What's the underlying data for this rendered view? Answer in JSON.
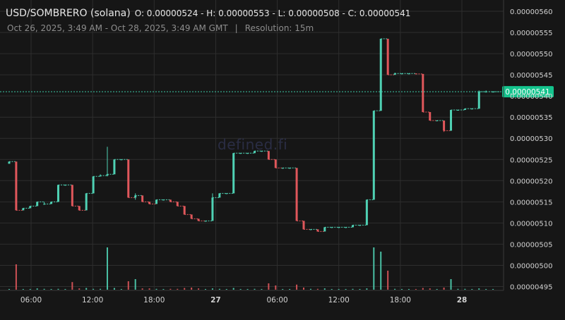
{
  "header": {
    "symbol": "USD/SOMBRERO (solana)",
    "ohlc": "O: 0.00000524 - H: 0.00000553 - L: 0.00000508 - C: 0.00000541",
    "date_range": "Oct 26, 2025, 3:49 AM - Oct 28, 2025, 3:49 AM GMT",
    "separator": "|",
    "resolution": "Resolution: 15m"
  },
  "watermark": "defined.fi",
  "colors": {
    "background": "#161616",
    "up": "#4fd1b4",
    "down": "#e0575b",
    "grid": "#2e2e2e",
    "price_line": "#3ec9a7",
    "price_tag_bg": "#14c48d"
  },
  "chart_data": {
    "type": "candlestick",
    "y_axis": {
      "ticks": [
        "0.00000560",
        "0.00000555",
        "0.00000550",
        "0.00000545",
        "0.00000540",
        "0.00000535",
        "0.00000530",
        "0.00000525",
        "0.00000520",
        "0.00000515",
        "0.00000510",
        "0.00000505",
        "0.00000500",
        "0.00000495"
      ],
      "range": [
        4.945e-06,
        5.6e-06
      ]
    },
    "x_axis": {
      "ticks": [
        {
          "label": "06:00",
          "bold": false
        },
        {
          "label": "12:00",
          "bold": false
        },
        {
          "label": "18:00",
          "bold": false
        },
        {
          "label": "27",
          "bold": true
        },
        {
          "label": "06:00",
          "bold": false
        },
        {
          "label": "12:00",
          "bold": false
        },
        {
          "label": "18:00",
          "bold": false
        },
        {
          "label": "28",
          "bold": true
        }
      ]
    },
    "current_price": "0.00000541",
    "current_price_value": 5.41e-06,
    "candles": [
      {
        "o": 5.24,
        "h": 5.245,
        "l": 5.24,
        "c": 5.245,
        "v": 0
      },
      {
        "o": 5.245,
        "h": 5.245,
        "l": 5.13,
        "c": 5.13,
        "v": 6
      },
      {
        "o": 5.13,
        "h": 5.135,
        "l": 5.13,
        "c": 5.135,
        "v": 0
      },
      {
        "o": 5.135,
        "h": 5.14,
        "l": 5.135,
        "c": 5.14,
        "v": 0
      },
      {
        "o": 5.14,
        "h": 5.15,
        "l": 5.14,
        "c": 5.15,
        "v": 0.3
      },
      {
        "o": 5.145,
        "h": 5.15,
        "l": 5.145,
        "c": 5.145,
        "v": 0.2
      },
      {
        "o": 5.145,
        "h": 5.15,
        "l": 5.145,
        "c": 5.15,
        "v": 0.1
      },
      {
        "o": 5.15,
        "h": 5.19,
        "l": 5.15,
        "c": 5.19,
        "v": 0.2
      },
      {
        "o": 5.19,
        "h": 5.19,
        "l": 5.19,
        "c": 5.19,
        "v": 0
      },
      {
        "o": 5.19,
        "h": 5.19,
        "l": 5.14,
        "c": 5.14,
        "v": 1.8
      },
      {
        "o": 5.14,
        "h": 5.14,
        "l": 5.13,
        "c": 5.13,
        "v": 0.3
      },
      {
        "o": 5.13,
        "h": 5.17,
        "l": 5.13,
        "c": 5.17,
        "v": 0.4
      },
      {
        "o": 5.17,
        "h": 5.21,
        "l": 5.17,
        "c": 5.21,
        "v": 0.2
      },
      {
        "o": 5.21,
        "h": 5.215,
        "l": 5.21,
        "c": 5.212,
        "v": 0.2
      },
      {
        "o": 5.212,
        "h": 5.28,
        "l": 5.21,
        "c": 5.215,
        "v": 10
      },
      {
        "o": 5.215,
        "h": 5.25,
        "l": 5.215,
        "c": 5.25,
        "v": 0.4
      },
      {
        "o": 5.25,
        "h": 5.25,
        "l": 5.25,
        "c": 5.25,
        "v": 0
      },
      {
        "o": 5.25,
        "h": 5.25,
        "l": 5.16,
        "c": 5.16,
        "v": 2
      },
      {
        "o": 5.16,
        "h": 5.17,
        "l": 5.155,
        "c": 5.165,
        "v": 2.5
      },
      {
        "o": 5.165,
        "h": 5.165,
        "l": 5.15,
        "c": 5.15,
        "v": 0.3
      },
      {
        "o": 5.15,
        "h": 5.15,
        "l": 5.145,
        "c": 5.145,
        "v": 0.3
      },
      {
        "o": 5.145,
        "h": 5.155,
        "l": 5.145,
        "c": 5.155,
        "v": 0.2
      },
      {
        "o": 5.155,
        "h": 5.155,
        "l": 5.155,
        "c": 5.155,
        "v": 0
      },
      {
        "o": 5.155,
        "h": 5.155,
        "l": 5.15,
        "c": 5.15,
        "v": 0.2
      },
      {
        "o": 5.15,
        "h": 5.15,
        "l": 5.14,
        "c": 5.14,
        "v": 0.2
      },
      {
        "o": 5.14,
        "h": 5.14,
        "l": 5.12,
        "c": 5.12,
        "v": 0.4
      },
      {
        "o": 5.12,
        "h": 5.12,
        "l": 5.11,
        "c": 5.11,
        "v": 0.5
      },
      {
        "o": 5.11,
        "h": 5.11,
        "l": 5.105,
        "c": 5.105,
        "v": 0.3
      },
      {
        "o": 5.105,
        "h": 5.105,
        "l": 5.105,
        "c": 5.105,
        "v": 0
      },
      {
        "o": 5.105,
        "h": 5.17,
        "l": 5.105,
        "c": 5.16,
        "v": 0.3
      },
      {
        "o": 5.16,
        "h": 5.17,
        "l": 5.16,
        "c": 5.17,
        "v": 0.2
      },
      {
        "o": 5.17,
        "h": 5.17,
        "l": 5.17,
        "c": 5.17,
        "v": 0
      },
      {
        "o": 5.17,
        "h": 5.265,
        "l": 5.17,
        "c": 5.265,
        "v": 0.4
      },
      {
        "o": 5.265,
        "h": 5.265,
        "l": 5.265,
        "c": 5.265,
        "v": 0
      },
      {
        "o": 5.265,
        "h": 5.265,
        "l": 5.265,
        "c": 5.265,
        "v": 0
      },
      {
        "o": 5.265,
        "h": 5.27,
        "l": 5.265,
        "c": 5.27,
        "v": 0.2
      },
      {
        "o": 5.27,
        "h": 5.27,
        "l": 5.27,
        "c": 5.27,
        "v": 0
      },
      {
        "o": 5.27,
        "h": 5.27,
        "l": 5.25,
        "c": 5.25,
        "v": 1.5
      },
      {
        "o": 5.25,
        "h": 5.25,
        "l": 5.23,
        "c": 5.23,
        "v": 1
      },
      {
        "o": 5.23,
        "h": 5.23,
        "l": 5.23,
        "c": 5.23,
        "v": 0
      },
      {
        "o": 5.23,
        "h": 5.23,
        "l": 5.23,
        "c": 5.23,
        "v": 0
      },
      {
        "o": 5.23,
        "h": 5.23,
        "l": 5.105,
        "c": 5.105,
        "v": 1.2
      },
      {
        "o": 5.105,
        "h": 5.105,
        "l": 5.085,
        "c": 5.085,
        "v": 0.5
      },
      {
        "o": 5.085,
        "h": 5.085,
        "l": 5.085,
        "c": 5.085,
        "v": 0.2
      },
      {
        "o": 5.085,
        "h": 5.085,
        "l": 5.08,
        "c": 5.08,
        "v": 0.2
      },
      {
        "o": 5.08,
        "h": 5.09,
        "l": 5.08,
        "c": 5.09,
        "v": 0.3
      },
      {
        "o": 5.09,
        "h": 5.09,
        "l": 5.09,
        "c": 5.09,
        "v": 0
      },
      {
        "o": 5.09,
        "h": 5.09,
        "l": 5.09,
        "c": 5.09,
        "v": 0
      },
      {
        "o": 5.09,
        "h": 5.09,
        "l": 5.09,
        "c": 5.09,
        "v": 0
      },
      {
        "o": 5.09,
        "h": 5.095,
        "l": 5.09,
        "c": 5.095,
        "v": 0.2
      },
      {
        "o": 5.095,
        "h": 5.095,
        "l": 5.095,
        "c": 5.095,
        "v": 0
      },
      {
        "o": 5.095,
        "h": 5.155,
        "l": 5.095,
        "c": 5.155,
        "v": 0.3
      },
      {
        "o": 5.155,
        "h": 5.365,
        "l": 5.155,
        "c": 5.365,
        "v": 10
      },
      {
        "o": 5.365,
        "h": 5.535,
        "l": 5.365,
        "c": 5.535,
        "v": 9
      },
      {
        "o": 5.535,
        "h": 5.535,
        "l": 5.45,
        "c": 5.45,
        "v": 4.5
      },
      {
        "o": 5.45,
        "h": 5.455,
        "l": 5.45,
        "c": 5.453,
        "v": 0.2
      },
      {
        "o": 5.453,
        "h": 5.453,
        "l": 5.453,
        "c": 5.453,
        "v": 0
      },
      {
        "o": 5.453,
        "h": 5.453,
        "l": 5.453,
        "c": 5.453,
        "v": 0
      },
      {
        "o": 5.453,
        "h": 5.453,
        "l": 5.452,
        "c": 5.452,
        "v": 0
      },
      {
        "o": 5.452,
        "h": 5.452,
        "l": 5.362,
        "c": 5.362,
        "v": 0.4
      },
      {
        "o": 5.362,
        "h": 5.362,
        "l": 5.342,
        "c": 5.342,
        "v": 0.3
      },
      {
        "o": 5.342,
        "h": 5.342,
        "l": 5.342,
        "c": 5.342,
        "v": 0
      },
      {
        "o": 5.342,
        "h": 5.342,
        "l": 5.315,
        "c": 5.318,
        "v": 0.5
      },
      {
        "o": 5.318,
        "h": 5.367,
        "l": 5.318,
        "c": 5.367,
        "v": 2.5
      },
      {
        "o": 5.367,
        "h": 5.367,
        "l": 5.367,
        "c": 5.367,
        "v": 0.2
      },
      {
        "o": 5.367,
        "h": 5.37,
        "l": 5.367,
        "c": 5.37,
        "v": 0.2
      },
      {
        "o": 5.37,
        "h": 5.37,
        "l": 5.37,
        "c": 5.37,
        "v": 0
      },
      {
        "o": 5.37,
        "h": 5.413,
        "l": 5.37,
        "c": 5.41,
        "v": 0.3
      },
      {
        "o": 5.41,
        "h": 5.413,
        "l": 5.41,
        "c": 5.41,
        "v": 0
      },
      {
        "o": 5.41,
        "h": 5.41,
        "l": 5.41,
        "c": 5.41,
        "v": 0
      }
    ],
    "price_scale": 1e-06
  }
}
